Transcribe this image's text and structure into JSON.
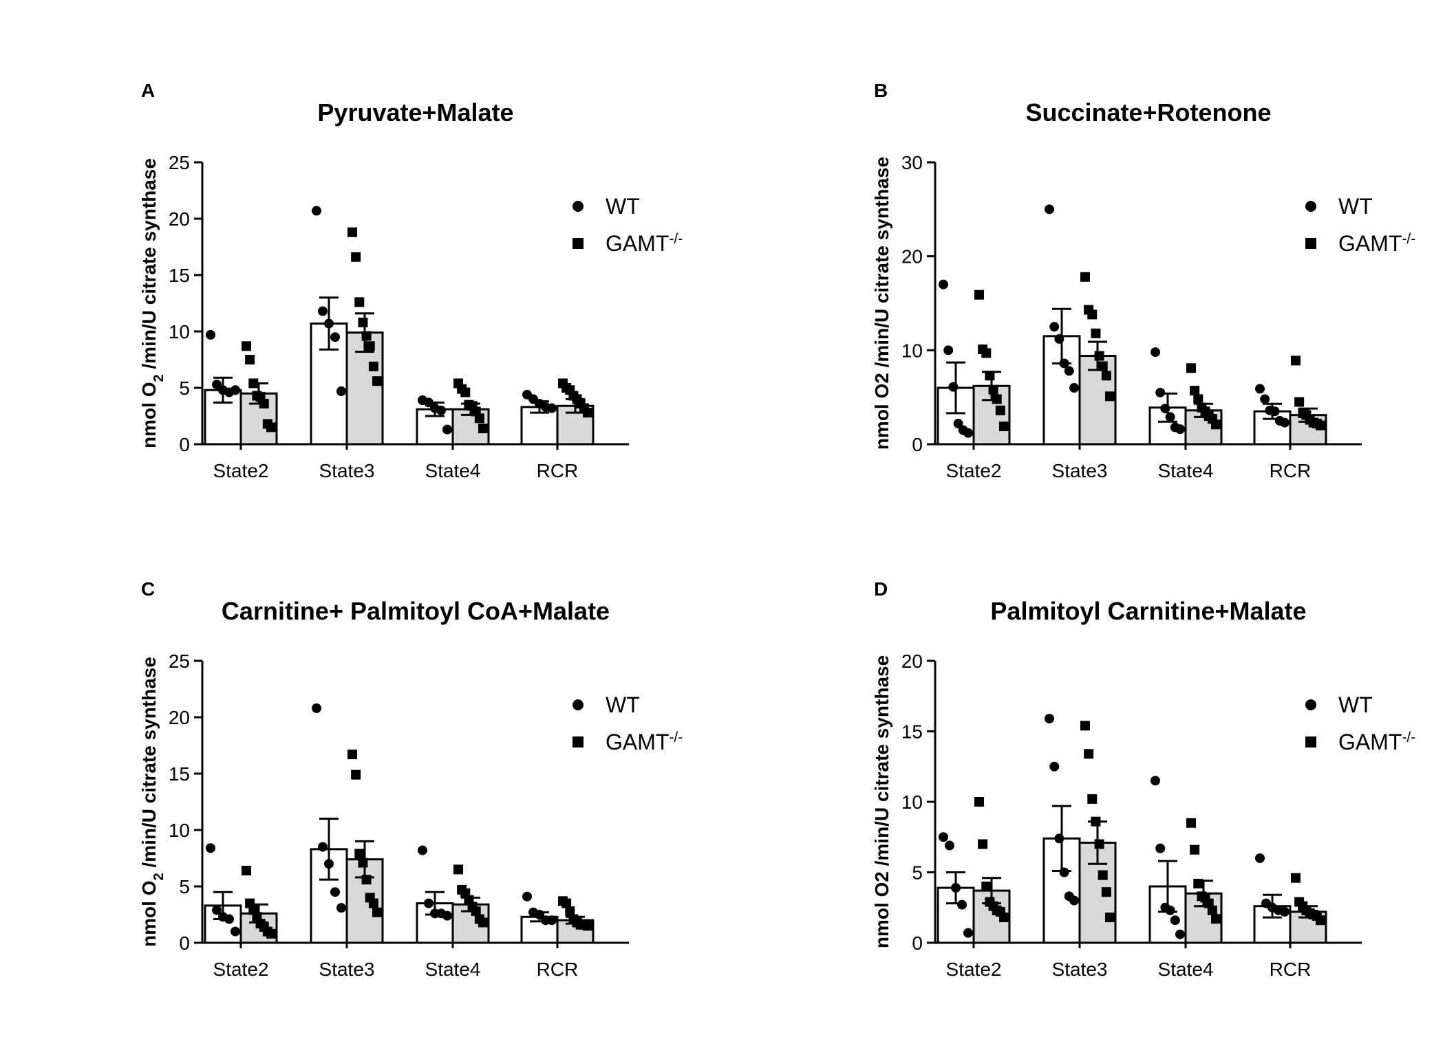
{
  "chart_data": [
    {
      "id": "A",
      "type": "bar",
      "panel_label": "A",
      "title": "Pyruvate+Malate",
      "ylabel_parts": [
        "nmol O",
        "2",
        " /min/U citrate synthase"
      ],
      "ylim": [
        0,
        25
      ],
      "yticks": [
        0,
        5,
        10,
        15,
        20,
        25
      ],
      "categories": [
        "State2",
        "State3",
        "State4",
        "RCR"
      ],
      "legend": [
        {
          "label": "WT",
          "sup": "",
          "marker": "circle"
        },
        {
          "label": "GAMT",
          "sup": "-/-",
          "marker": "square"
        }
      ],
      "series": [
        {
          "name": "WT",
          "fill": "#ffffff",
          "marker": "circle",
          "means": [
            4.8,
            10.7,
            3.1,
            3.3
          ],
          "sem": [
            1.1,
            2.3,
            0.6,
            0.5
          ],
          "points": [
            [
              9.7,
              5.3,
              4.8,
              4.6,
              4.8
            ],
            [
              20.7,
              11.8,
              10.7,
              9.5,
              4.7
            ],
            [
              3.9,
              3.7,
              3.2,
              3.0,
              1.3
            ],
            [
              4.4,
              4.0,
              3.6,
              3.3,
              3.2
            ]
          ]
        },
        {
          "name": "GAMT-/-",
          "fill": "#d9d9d9",
          "marker": "square",
          "means": [
            4.5,
            9.9,
            3.1,
            3.4
          ],
          "sem": [
            0.9,
            1.7,
            0.5,
            0.6
          ],
          "points": [
            [
              8.7,
              7.5,
              5.4,
              4.3,
              4.2,
              3.6,
              1.8,
              1.5
            ],
            [
              18.8,
              16.6,
              12.6,
              10.8,
              9.6,
              8.7,
              6.9,
              5.6
            ],
            [
              5.4,
              4.9,
              4.6,
              3.5,
              3.4,
              2.9,
              2.3,
              1.4
            ],
            [
              5.4,
              5.0,
              4.8,
              4.3,
              4.0,
              3.6,
              3.2,
              2.8
            ]
          ]
        }
      ]
    },
    {
      "id": "B",
      "type": "bar",
      "panel_label": "B",
      "title": "Succinate+Rotenone",
      "ylabel_parts": [
        "nmol O2 /min/U citrate synthase"
      ],
      "ylim": [
        0,
        30
      ],
      "yticks": [
        0,
        10,
        20,
        30
      ],
      "categories": [
        "State2",
        "State3",
        "State4",
        "RCR"
      ],
      "legend": [
        {
          "label": "WT",
          "sup": "",
          "marker": "circle"
        },
        {
          "label": "GAMT",
          "sup": "-/-",
          "marker": "square"
        }
      ],
      "series": [
        {
          "name": "WT",
          "fill": "#ffffff",
          "marker": "circle",
          "means": [
            6.0,
            11.5,
            3.9,
            3.5
          ],
          "sem": [
            2.7,
            2.9,
            1.5,
            0.8
          ],
          "points": [
            [
              17.0,
              10.0,
              6.1,
              2.2,
              1.5,
              1.2
            ],
            [
              25.0,
              12.5,
              11.2,
              8.6,
              7.8,
              6.0
            ],
            [
              9.8,
              5.5,
              3.8,
              2.9,
              1.8,
              1.6
            ],
            [
              5.9,
              4.8,
              3.6,
              3.5,
              2.5,
              2.3
            ]
          ]
        },
        {
          "name": "GAMT-/-",
          "fill": "#d9d9d9",
          "marker": "square",
          "means": [
            6.2,
            9.4,
            3.6,
            3.1
          ],
          "sem": [
            1.5,
            1.5,
            0.7,
            0.7
          ],
          "points": [
            [
              15.9,
              10.1,
              9.7,
              7.3,
              5.8,
              4.8,
              3.6,
              1.9
            ],
            [
              17.8,
              14.3,
              13.8,
              11.8,
              9.4,
              8.3,
              7.3,
              5.1
            ],
            [
              8.1,
              5.7,
              4.8,
              3.9,
              3.5,
              3.0,
              2.7,
              2.1
            ],
            [
              8.9,
              4.5,
              3.3,
              3.1,
              2.6,
              2.3,
              2.2,
              2.0
            ]
          ]
        }
      ]
    },
    {
      "id": "C",
      "type": "bar",
      "panel_label": "C",
      "title": "Carnitine+ Palmitoyl CoA+Malate",
      "ylabel_parts": [
        "nmol O",
        "2",
        " /min/U citrate synthase"
      ],
      "ylim": [
        0,
        25
      ],
      "yticks": [
        0,
        5,
        10,
        15,
        20,
        25
      ],
      "categories": [
        "State2",
        "State3",
        "State4",
        "RCR"
      ],
      "legend": [
        {
          "label": "WT",
          "sup": "",
          "marker": "circle"
        },
        {
          "label": "GAMT",
          "sup": "-/-",
          "marker": "square"
        }
      ],
      "series": [
        {
          "name": "WT",
          "fill": "#ffffff",
          "marker": "circle",
          "means": [
            3.3,
            8.3,
            3.5,
            2.3
          ],
          "sem": [
            1.2,
            2.7,
            1.0,
            0.4
          ],
          "points": [
            [
              8.4,
              2.9,
              2.3,
              2.1,
              1.0
            ],
            [
              20.8,
              8.5,
              7.0,
              4.5,
              3.1
            ],
            [
              8.2,
              3.5,
              2.6,
              2.6,
              2.4
            ],
            [
              4.1,
              2.7,
              2.5,
              2.0,
              2.0
            ]
          ]
        },
        {
          "name": "GAMT-/-",
          "fill": "#d9d9d9",
          "marker": "square",
          "means": [
            2.6,
            7.4,
            3.4,
            2.0
          ],
          "sem": [
            0.8,
            1.6,
            0.6,
            0.3
          ],
          "points": [
            [
              6.4,
              3.5,
              2.9,
              2.3,
              1.7,
              1.4,
              1.0,
              0.8
            ],
            [
              16.7,
              14.9,
              7.9,
              7.1,
              5.6,
              4.0,
              3.5,
              2.7
            ],
            [
              6.5,
              4.7,
              4.4,
              3.8,
              3.2,
              2.8,
              2.1,
              1.8
            ],
            [
              3.7,
              3.5,
              2.8,
              2.1,
              1.8,
              1.6,
              1.6,
              1.5
            ]
          ]
        }
      ]
    },
    {
      "id": "D",
      "type": "bar",
      "panel_label": "D",
      "title": "Palmitoyl Carnitine+Malate",
      "ylabel_parts": [
        "nmol O2 /min/U citrate synthase"
      ],
      "ylim": [
        0,
        20
      ],
      "yticks": [
        0,
        5,
        10,
        15,
        20
      ],
      "categories": [
        "State2",
        "State3",
        "State4",
        "RCR"
      ],
      "legend": [
        {
          "label": "WT",
          "sup": "",
          "marker": "circle"
        },
        {
          "label": "GAMT",
          "sup": "-/-",
          "marker": "square"
        }
      ],
      "series": [
        {
          "name": "WT",
          "fill": "#ffffff",
          "marker": "circle",
          "means": [
            3.9,
            7.4,
            4.0,
            2.6
          ],
          "sem": [
            1.1,
            2.3,
            1.8,
            0.8
          ],
          "points": [
            [
              7.5,
              6.9,
              3.9,
              2.7,
              0.7
            ],
            [
              15.9,
              12.5,
              7.4,
              5.0,
              3.3,
              3.0
            ],
            [
              11.5,
              6.7,
              2.5,
              2.3,
              1.6,
              0.6
            ],
            [
              6.0,
              2.8,
              2.5,
              2.3,
              2.2
            ]
          ]
        },
        {
          "name": "GAMT-/-",
          "fill": "#d9d9d9",
          "marker": "square",
          "means": [
            3.7,
            7.1,
            3.5,
            2.2
          ],
          "sem": [
            0.9,
            1.5,
            0.9,
            0.4
          ],
          "points": [
            [
              10.0,
              7.0,
              4.0,
              2.9,
              2.6,
              2.3,
              2.2,
              1.8
            ],
            [
              15.4,
              13.4,
              10.2,
              8.6,
              7.0,
              4.8,
              3.6,
              1.8
            ],
            [
              8.5,
              6.6,
              4.2,
              3.3,
              3.2,
              2.8,
              2.3,
              1.7
            ],
            [
              4.6,
              2.9,
              2.6,
              2.3,
              2.1,
              2.0,
              1.9,
              1.6
            ]
          ]
        }
      ]
    }
  ]
}
